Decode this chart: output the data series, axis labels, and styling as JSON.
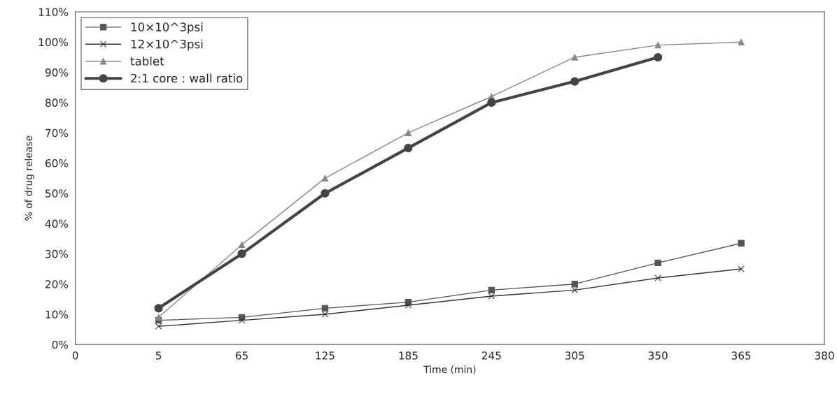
{
  "chart_data": {
    "type": "line",
    "xlabel": "Time (min)",
    "ylabel": "% of drug release",
    "categories": [
      "0",
      "5",
      "65",
      "125",
      "185",
      "245",
      "305",
      "350",
      "365",
      "380"
    ],
    "ylim": [
      0,
      110
    ],
    "yticks": [
      {
        "value": 0,
        "label": "0%"
      },
      {
        "value": 10,
        "label": "10%"
      },
      {
        "value": 20,
        "label": "20%"
      },
      {
        "value": 30,
        "label": "30%"
      },
      {
        "value": 40,
        "label": "40%"
      },
      {
        "value": 50,
        "label": "50%"
      },
      {
        "value": 60,
        "label": "60%"
      },
      {
        "value": 70,
        "label": "70%"
      },
      {
        "value": 80,
        "label": "80%"
      },
      {
        "value": 90,
        "label": "90%"
      },
      {
        "value": 100,
        "label": "100%"
      },
      {
        "value": 110,
        "label": "110%"
      }
    ],
    "grid": false,
    "legend": "top left",
    "series": [
      {
        "name": "10×10^3psi",
        "color": "#555555",
        "marker": "square",
        "values": [
          null,
          8,
          9,
          12,
          14,
          18,
          20,
          27,
          33.5,
          null
        ]
      },
      {
        "name": "12×10^3psi",
        "color": "#333333",
        "marker": "cross",
        "values": [
          null,
          6,
          8,
          10,
          13,
          16,
          18,
          22,
          25,
          null
        ]
      },
      {
        "name": "tablet",
        "color": "#888888",
        "marker": "triangle",
        "values": [
          null,
          9,
          33,
          55,
          70,
          82,
          95,
          99,
          100,
          null
        ]
      },
      {
        "name": "2:1 core : wall ratio",
        "color": "#444444",
        "marker": "circle",
        "values": [
          null,
          12,
          30,
          50,
          65,
          80,
          87,
          95,
          null,
          null
        ]
      }
    ]
  }
}
